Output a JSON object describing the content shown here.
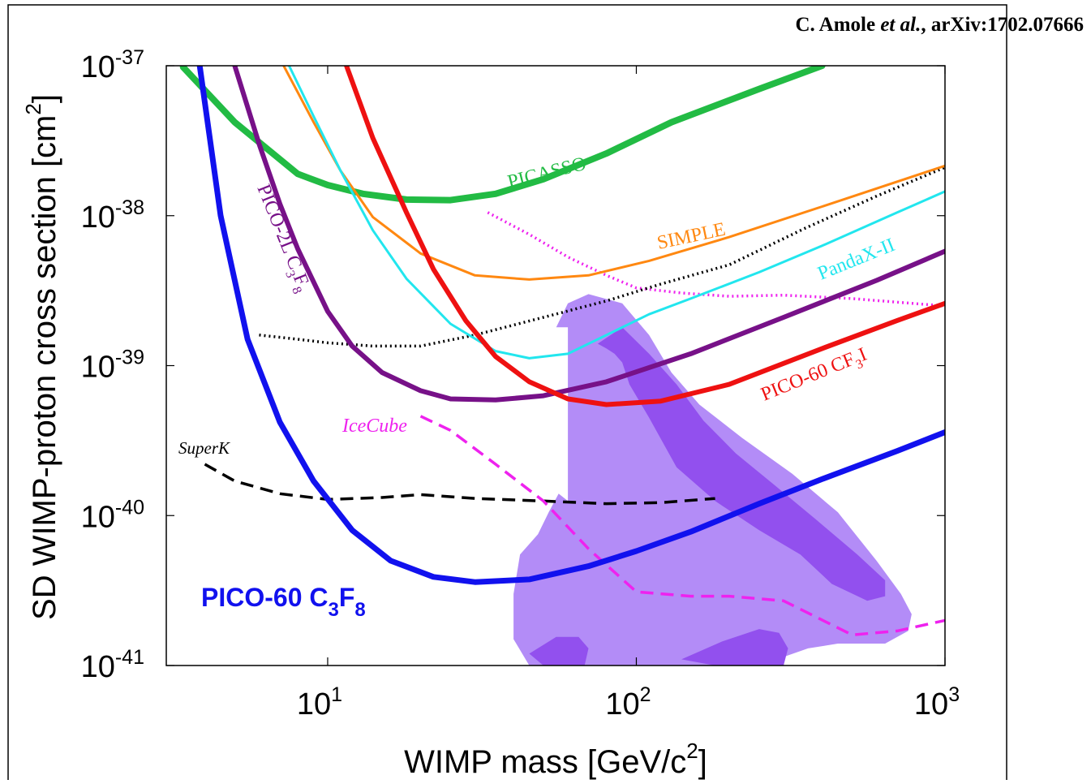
{
  "citation": {
    "author": "C. Amole",
    "etal": "et al.",
    "ref": ", arXiv:1702.07666"
  },
  "chart_data": {
    "type": "line",
    "xscale": "log",
    "yscale": "log",
    "xlim": [
      3,
      1000
    ],
    "ylim": [
      1e-41,
      1e-37
    ],
    "xlabel": {
      "main": "WIMP mass [GeV/c",
      "sup": "2",
      "tail": "]"
    },
    "ylabel": {
      "main": "SD WIMP-proton cross section [cm",
      "sup": "2",
      "tail": "]"
    },
    "xticks": [
      {
        "value": 10,
        "base": "10",
        "exp": "1"
      },
      {
        "value": 100,
        "base": "10",
        "exp": "2"
      },
      {
        "value": 1000,
        "base": "10",
        "exp": "3"
      }
    ],
    "yticks": [
      {
        "value": 1e-41,
        "base": "10",
        "exp": "-41"
      },
      {
        "value": 1e-40,
        "base": "10",
        "exp": "-40"
      },
      {
        "value": 1e-39,
        "base": "10",
        "exp": "-39"
      },
      {
        "value": 1e-38,
        "base": "10",
        "exp": "-38"
      },
      {
        "value": 1e-37,
        "base": "10",
        "exp": "-37"
      }
    ],
    "series": [
      {
        "id": "picasso",
        "color": "#22bb44",
        "width": 8,
        "dash": "",
        "x": [
          3.4,
          5,
          8,
          10,
          13,
          18,
          25,
          35,
          50,
          80,
          130,
          250,
          400
        ],
        "y": [
          9.8e-38,
          4.2e-38,
          1.9e-38,
          1.6e-38,
          1.4e-38,
          1.28e-38,
          1.27e-38,
          1.4e-38,
          1.75e-38,
          2.6e-38,
          4.2e-38,
          7e-38,
          1e-37
        ]
      },
      {
        "id": "simple",
        "color": "#ff8811",
        "width": 3,
        "dash": "",
        "x": [
          7.2,
          9,
          11,
          14,
          20,
          30,
          45,
          70,
          110,
          200,
          400,
          1000
        ],
        "y": [
          1e-37,
          4.2e-38,
          2e-38,
          9.8e-39,
          5.6e-39,
          4e-39,
          3.75e-39,
          4e-39,
          5e-39,
          7.2e-39,
          1.15e-38,
          2.15e-38
        ]
      },
      {
        "id": "pandax",
        "color": "#22e6ee",
        "width": 3,
        "dash": "",
        "x": [
          7.5,
          9,
          11,
          14,
          18,
          25,
          35,
          45,
          60,
          80,
          110,
          150,
          250,
          400,
          700,
          1000
        ],
        "y": [
          1e-37,
          4.6e-38,
          2e-38,
          8e-39,
          3.8e-39,
          1.9e-39,
          1.25e-39,
          1.12e-39,
          1.2e-39,
          1.6e-39,
          2.2e-39,
          2.8e-39,
          4.2e-39,
          6.3e-39,
          1.05e-38,
          1.45e-38
        ]
      },
      {
        "id": "pico2l",
        "color": "#771188",
        "width": 6,
        "dash": "",
        "x": [
          5,
          6,
          7,
          8,
          10,
          12,
          15,
          20,
          25,
          35,
          50,
          80,
          150,
          300,
          600,
          1000
        ],
        "y": [
          1e-37,
          3e-38,
          1.2e-38,
          6e-39,
          2.3e-39,
          1.35e-39,
          9e-40,
          6.8e-40,
          6e-40,
          5.9e-40,
          6.3e-40,
          7.8e-40,
          1.2e-39,
          2.1e-39,
          3.7e-39,
          5.8e-39
        ]
      },
      {
        "id": "pico60cf3i",
        "color": "#ee1111",
        "width": 6,
        "dash": "",
        "x": [
          11.5,
          14,
          18,
          22,
          28,
          35,
          45,
          60,
          80,
          120,
          200,
          400,
          700,
          1000
        ],
        "y": [
          1e-37,
          3.3e-38,
          1.05e-38,
          4.4e-39,
          2e-39,
          1.15e-39,
          7.8e-40,
          6e-40,
          5.5e-40,
          5.8e-40,
          7.5e-40,
          1.3e-39,
          2e-39,
          2.6e-39
        ]
      },
      {
        "id": "pico60c3f8",
        "color": "#1111ee",
        "width": 7,
        "dash": "",
        "x": [
          3.85,
          4.5,
          5.5,
          7,
          9,
          12,
          16,
          22,
          30,
          45,
          70,
          100,
          150,
          250,
          400,
          700,
          1000
        ],
        "y": [
          1e-37,
          1e-38,
          1.5e-39,
          4.2e-40,
          1.7e-40,
          8e-41,
          5e-41,
          3.9e-41,
          3.6e-41,
          3.75e-41,
          4.6e-41,
          5.8e-41,
          7.8e-41,
          1.2e-40,
          1.75e-40,
          2.7e-40,
          3.6e-40
        ]
      },
      {
        "id": "lux",
        "color": "#000000",
        "width": 3.5,
        "dash": "2,4",
        "x": [
          6,
          8,
          10,
          14,
          20,
          30,
          50,
          80,
          120,
          200,
          350,
          600,
          1000
        ],
        "y": [
          1.6e-39,
          1.5e-39,
          1.42e-39,
          1.35e-39,
          1.35e-39,
          1.6e-39,
          2.1e-39,
          2.7e-39,
          3.5e-39,
          4.7e-39,
          8.2e-39,
          1.35e-38,
          2.1e-38
        ]
      },
      {
        "id": "lhc",
        "color": "#ee22ee",
        "width": 3.5,
        "dash": "2,4",
        "x": [
          33,
          45,
          60,
          80,
          100,
          140,
          200,
          300,
          500,
          1000
        ],
        "y": [
          1.05e-38,
          7.5e-39,
          5.3e-39,
          4e-39,
          3.3e-39,
          3.05e-39,
          2.9e-39,
          2.95e-39,
          2.8e-39,
          2.5e-39
        ]
      },
      {
        "id": "icecube",
        "color": "#ee22ee",
        "width": 3.5,
        "dash": "16,9",
        "x": [
          20,
          25,
          35,
          50,
          70,
          100,
          150,
          200,
          300,
          500,
          700,
          1000
        ],
        "y": [
          4.6e-40,
          3.7e-40,
          2.2e-40,
          1.25e-40,
          6e-41,
          3.1e-41,
          2.9e-41,
          2.9e-41,
          2.7e-41,
          1.6e-41,
          1.7e-41,
          2e-41
        ]
      },
      {
        "id": "superk",
        "color": "#000000",
        "width": 3.5,
        "dash": "16,9",
        "x": [
          4,
          5,
          7,
          10,
          15,
          20,
          30,
          50,
          80,
          120,
          180
        ],
        "y": [
          2.2e-40,
          1.7e-40,
          1.4e-40,
          1.28e-40,
          1.32e-40,
          1.38e-40,
          1.3e-40,
          1.25e-40,
          1.2e-40,
          1.22e-40,
          1.3e-40
        ]
      }
    ],
    "regions": [
      {
        "id": "cmssm-outer",
        "color": "#b38cf7",
        "x": [
          55,
          60,
          70,
          90,
          110,
          130,
          160,
          220,
          320,
          450,
          600,
          720,
          780,
          760,
          640,
          450,
          360,
          250,
          150,
          110,
          80,
          55,
          45,
          40,
          40,
          42,
          48,
          52,
          56,
          60,
          60
        ],
        "y": [
          1.8e-39,
          2.6e-39,
          3e-39,
          2.6e-39,
          1.6e-39,
          9e-40,
          5.5e-40,
          3.3e-40,
          1.9e-40,
          1.05e-40,
          5e-41,
          3e-41,
          2.2e-41,
          1.7e-41,
          1.4e-41,
          1.4e-41,
          1.3e-41,
          1e-41,
          1e-41,
          1e-41,
          1e-41,
          1e-41,
          1e-41,
          1.5e-41,
          3e-41,
          5.5e-41,
          7.5e-41,
          1.05e-40,
          1.4e-40,
          1.25e-40,
          1.8e-39
        ]
      },
      {
        "id": "cmssm-inner",
        "color": "#9250ee",
        "x": [
          75,
          90,
          110,
          135,
          165,
          210,
          280,
          380,
          520,
          640,
          640,
          560,
          430,
          340,
          250,
          180,
          135,
          110,
          95,
          90,
          85,
          80
        ],
        "y": [
          1.4e-39,
          1.8e-39,
          1.2e-39,
          7.5e-40,
          4.3e-40,
          2.6e-40,
          1.6e-40,
          9.5e-41,
          5.5e-41,
          3.7e-41,
          2.9e-41,
          2.7e-41,
          3.5e-41,
          5.5e-41,
          8e-41,
          1.25e-40,
          2.1e-40,
          4.5e-40,
          7.5e-40,
          1.05e-39,
          1.2e-39,
          1.3e-39
        ]
      },
      {
        "id": "cmssm-blob-left",
        "color": "#9250ee",
        "x": [
          45,
          55,
          65,
          70,
          68,
          50,
          45
        ],
        "y": [
          1.2e-41,
          1.55e-41,
          1.55e-41,
          1.3e-41,
          1e-41,
          1e-41,
          1.2e-41
        ]
      },
      {
        "id": "cmssm-blob-right",
        "color": "#9250ee",
        "x": [
          140,
          190,
          250,
          290,
          310,
          300,
          180,
          140
        ],
        "y": [
          1.1e-41,
          1.45e-41,
          1.75e-41,
          1.65e-41,
          1.3e-41,
          1e-41,
          1e-41,
          1.1e-41
        ]
      }
    ],
    "labels": [
      {
        "id": "picasso",
        "text": "PICASSO",
        "color": "#22bb44"
      },
      {
        "id": "simple",
        "text": "SIMPLE",
        "color": "#ff8811"
      },
      {
        "id": "pandax",
        "text": "PandaX-II",
        "color": "#22e6ee"
      },
      {
        "id": "pico60cf3i",
        "pre": "PICO-60 CF",
        "sub": "3",
        "post": "I",
        "color": "#ee1111"
      },
      {
        "id": "pico2l",
        "pre": "PICO-2L C",
        "sub": "3",
        "post": "F",
        "sub2": "8",
        "color": "#771188"
      },
      {
        "id": "icecube",
        "text": "IceCube",
        "color": "#ee22ee"
      },
      {
        "id": "superk",
        "text": "SuperK",
        "color": "#000000"
      },
      {
        "id": "pico60c3f8",
        "pre": "PICO-60 C",
        "sub": "3",
        "post": "F",
        "sub2": "8",
        "color": "#1111ee"
      }
    ]
  }
}
